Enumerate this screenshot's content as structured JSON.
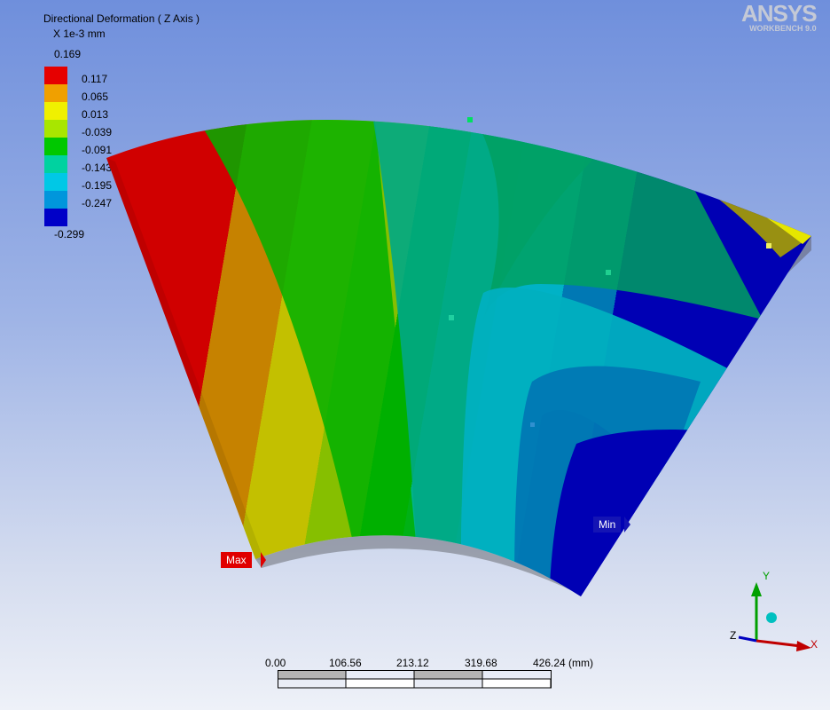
{
  "legend": {
    "title": "Directional Deformation ( Z Axis )",
    "unit": "X 1e-3 mm",
    "max_value": "0.169",
    "min_value": "-0.299",
    "ticks": [
      "0.117",
      "0.065",
      "0.013",
      "-0.039",
      "-0.091",
      "-0.143",
      "-0.195",
      "-0.247"
    ],
    "colors": [
      "#e60000",
      "#f0a000",
      "#f0f000",
      "#a8e600",
      "#00c800",
      "#00d2a0",
      "#00c8e6",
      "#0096dc",
      "#0000c8"
    ]
  },
  "logo": {
    "brand": "ANSYS",
    "product": "WORKBENCH 9.0"
  },
  "probes": {
    "max_label": "Max",
    "min_label": "Min"
  },
  "scale": {
    "labels": [
      "0.00",
      "106.56",
      "213.12",
      "319.68",
      "426.24 (mm)"
    ]
  },
  "triad": {
    "x_label": "X",
    "y_label": "Y",
    "z_label": "Z"
  }
}
